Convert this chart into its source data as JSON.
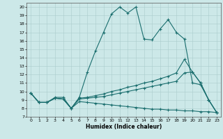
{
  "xlabel": "Humidex (Indice chaleur)",
  "bg_color": "#cce8e8",
  "grid_color": "#aacccc",
  "line_color": "#1a6e6e",
  "xlim": [
    -0.5,
    23.5
  ],
  "ylim": [
    7,
    20.5
  ],
  "xticks": [
    0,
    1,
    2,
    3,
    4,
    5,
    6,
    7,
    8,
    9,
    10,
    11,
    12,
    13,
    14,
    15,
    16,
    17,
    18,
    19,
    20,
    21,
    22,
    23
  ],
  "yticks": [
    7,
    8,
    9,
    10,
    11,
    12,
    13,
    14,
    15,
    16,
    17,
    18,
    19,
    20
  ],
  "line1_x": [
    0,
    1,
    2,
    3,
    4,
    5,
    6,
    7,
    8,
    9,
    10,
    11,
    12,
    13,
    14,
    15,
    16,
    17,
    18,
    19,
    20,
    21,
    22,
    23
  ],
  "line1_y": [
    9.8,
    8.7,
    8.7,
    9.3,
    9.3,
    8.0,
    9.3,
    12.3,
    14.8,
    17.0,
    19.2,
    20.0,
    19.3,
    20.0,
    16.2,
    16.1,
    17.4,
    18.5,
    17.0,
    16.2,
    11.0,
    10.8,
    9.0,
    7.5
  ],
  "line2_x": [
    0,
    1,
    2,
    3,
    4,
    5,
    6,
    7,
    8,
    9,
    10,
    11,
    12,
    13,
    14,
    15,
    16,
    17,
    18,
    19,
    20,
    21,
    22,
    23
  ],
  "line2_y": [
    9.8,
    8.7,
    8.7,
    9.2,
    9.1,
    8.0,
    9.2,
    9.3,
    9.5,
    9.7,
    10.0,
    10.2,
    10.5,
    10.7,
    11.0,
    11.2,
    11.5,
    11.8,
    12.2,
    13.8,
    12.3,
    11.0,
    9.0,
    7.5
  ],
  "line3_x": [
    0,
    1,
    2,
    3,
    4,
    5,
    6,
    7,
    8,
    9,
    10,
    11,
    12,
    13,
    14,
    15,
    16,
    17,
    18,
    19,
    20,
    21,
    22,
    23
  ],
  "line3_y": [
    9.8,
    8.7,
    8.7,
    9.2,
    9.1,
    8.0,
    9.1,
    9.2,
    9.3,
    9.4,
    9.6,
    9.8,
    10.0,
    10.2,
    10.4,
    10.6,
    10.8,
    11.0,
    11.2,
    12.2,
    12.3,
    11.0,
    9.0,
    7.5
  ],
  "line4_x": [
    0,
    1,
    2,
    3,
    4,
    5,
    6,
    7,
    8,
    9,
    10,
    11,
    12,
    13,
    14,
    15,
    16,
    17,
    18,
    19,
    20,
    21,
    22,
    23
  ],
  "line4_y": [
    9.8,
    8.7,
    8.7,
    9.2,
    9.1,
    8.0,
    8.8,
    8.7,
    8.6,
    8.5,
    8.4,
    8.3,
    8.2,
    8.1,
    8.0,
    7.9,
    7.9,
    7.8,
    7.8,
    7.7,
    7.7,
    7.6,
    7.6,
    7.5
  ]
}
